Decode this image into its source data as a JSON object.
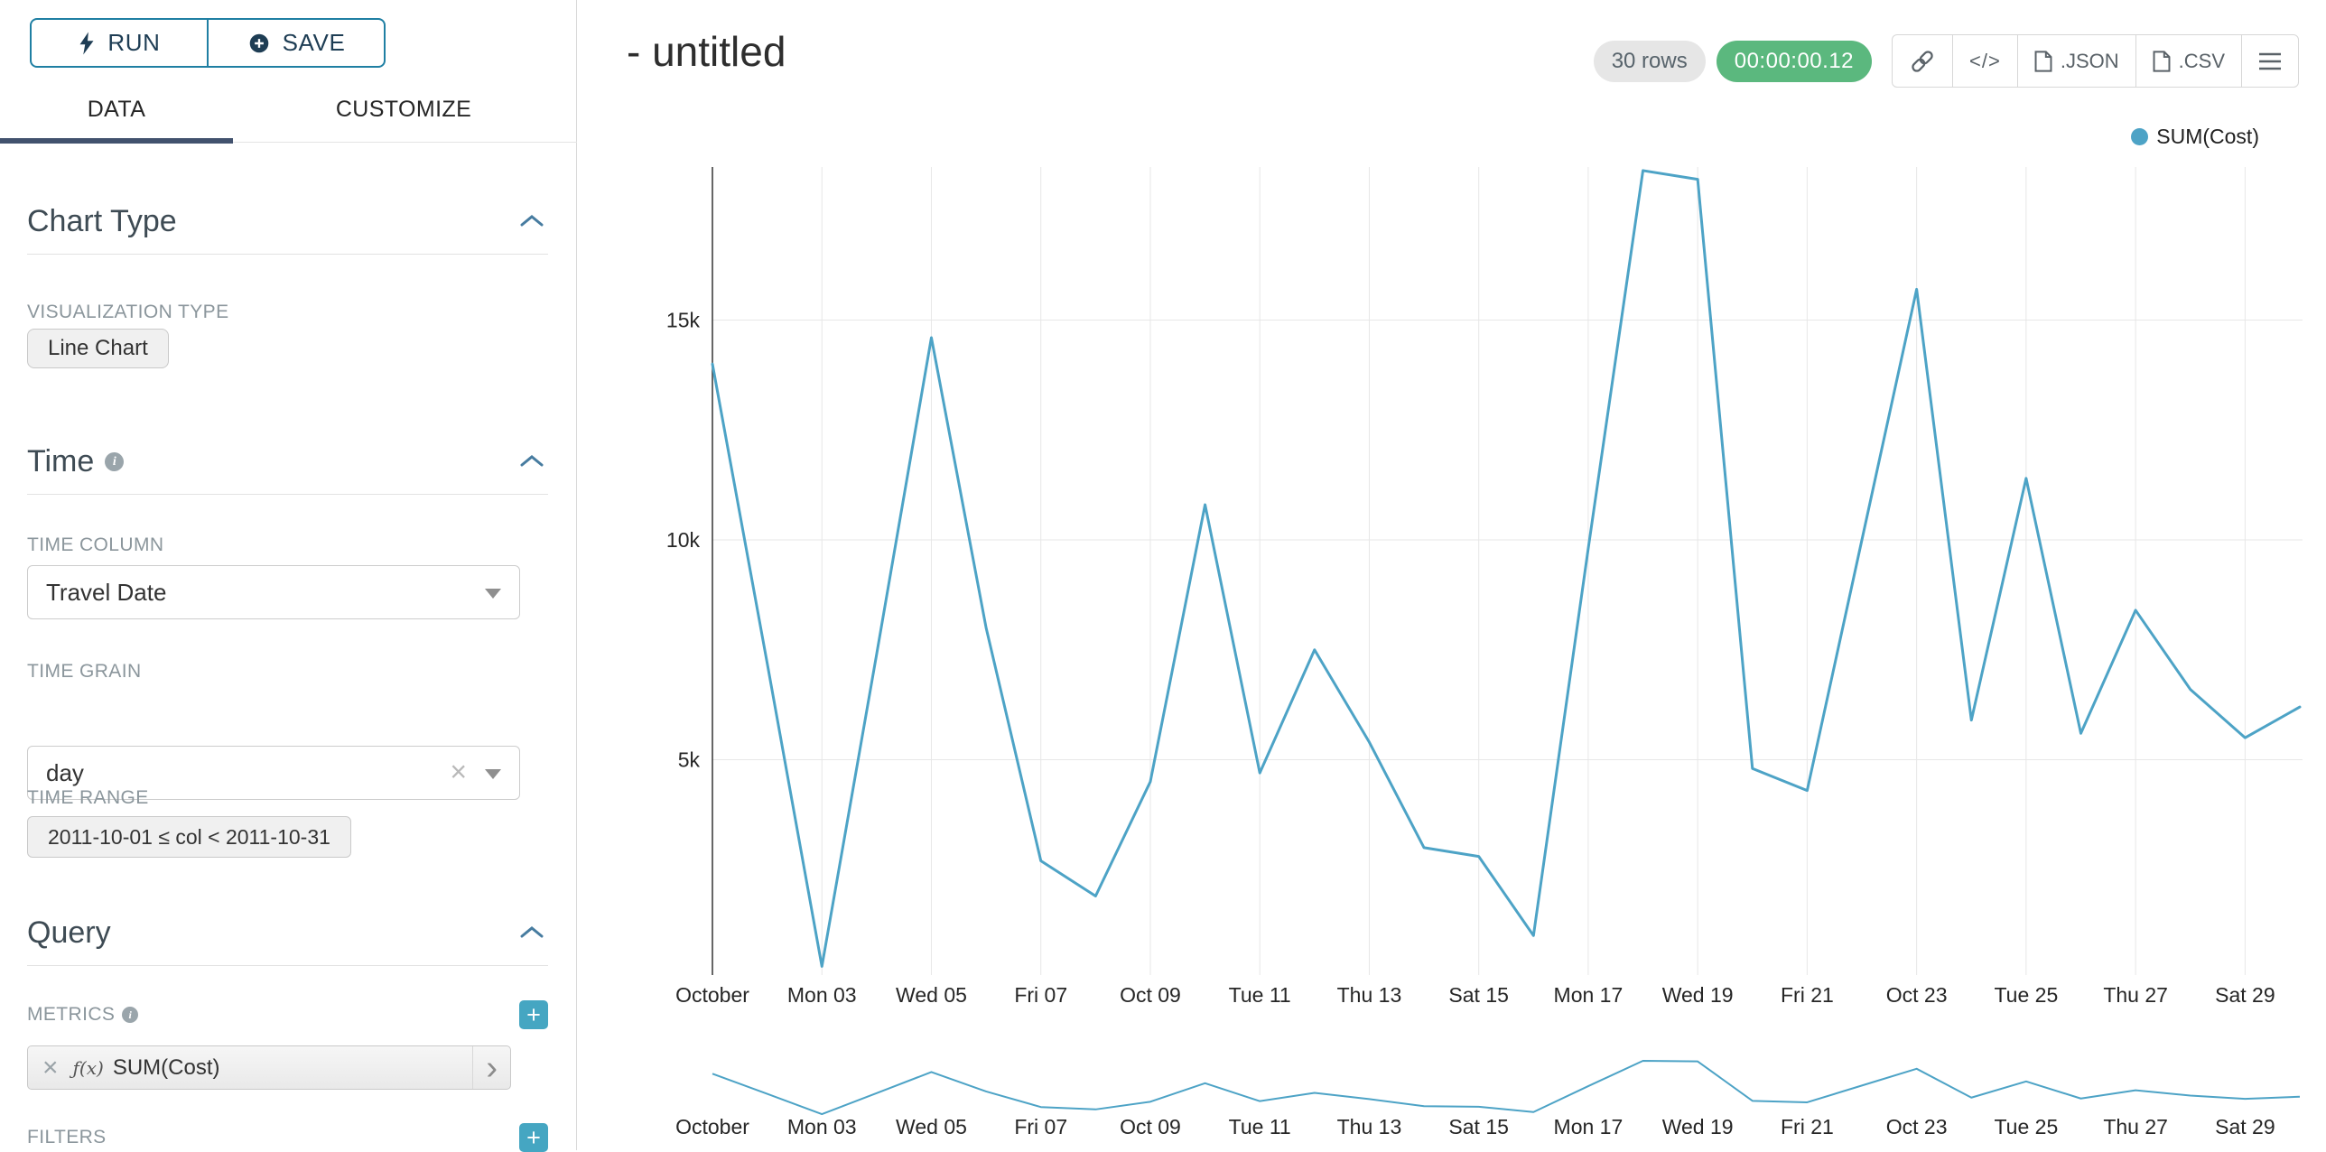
{
  "sidebar": {
    "run_button": {
      "label": "RUN"
    },
    "save_button": {
      "label": "SAVE"
    },
    "tabs": {
      "data": "DATA",
      "customize": "CUSTOMIZE"
    },
    "chart_type_section": {
      "title": "Chart Type",
      "visualization_type_label": "VISUALIZATION TYPE",
      "visualization_type_value": "Line Chart"
    },
    "time_section": {
      "title": "Time",
      "time_column_label": "TIME COLUMN",
      "time_column_value": "Travel Date",
      "time_grain_label": "TIME GRAIN",
      "time_grain_value": "day",
      "time_range_label": "TIME RANGE",
      "time_range_value": "2011-10-01 ≤ col < 2011-10-31"
    },
    "query_section": {
      "title": "Query",
      "metrics_label": "METRICS",
      "metric": {
        "fx": "ƒ(x)",
        "label": "SUM(Cost)"
      },
      "filters_label": "FILTERS"
    }
  },
  "header": {
    "title": "- untitled",
    "rows_badge": "30 rows",
    "timer_badge": "00:00:00.12",
    "export_json_label": ".JSON",
    "export_csv_label": ".CSV"
  },
  "chart_data": {
    "type": "line",
    "title": "- untitled",
    "color": "#4DA3C6",
    "legend": [
      {
        "name": "SUM(Cost)",
        "color": "#4DA3C6"
      }
    ],
    "n_points": 30,
    "x_tick_labels": [
      "October",
      "Mon 03",
      "Wed 05",
      "Fri 07",
      "Oct 09",
      "Tue 11",
      "Thu 13",
      "Sat 15",
      "Mon 17",
      "Wed 19",
      "Fri 21",
      "Oct 23",
      "Tue 25",
      "Thu 27",
      "Sat 29"
    ],
    "x_tick_every_days": 2,
    "y_ticks": [
      {
        "value": 5000,
        "label": "5k"
      },
      {
        "value": 10000,
        "label": "10k"
      },
      {
        "value": 15000,
        "label": "15k"
      }
    ],
    "ylim": [
      0,
      18400
    ],
    "xlabel": "",
    "ylabel": "",
    "grid": true,
    "legend_position": "top-right",
    "has_brush_minichart": true,
    "series": [
      {
        "name": "SUM(Cost)",
        "values": [
          14000,
          7200,
          300,
          7400,
          14600,
          8000,
          2700,
          1900,
          4500,
          10800,
          4700,
          7500,
          5400,
          3000,
          2800,
          1000,
          9800,
          18400,
          18200,
          4800,
          4300,
          10000,
          15700,
          5900,
          11400,
          5600,
          8400,
          6600,
          5500,
          6200
        ]
      }
    ]
  }
}
